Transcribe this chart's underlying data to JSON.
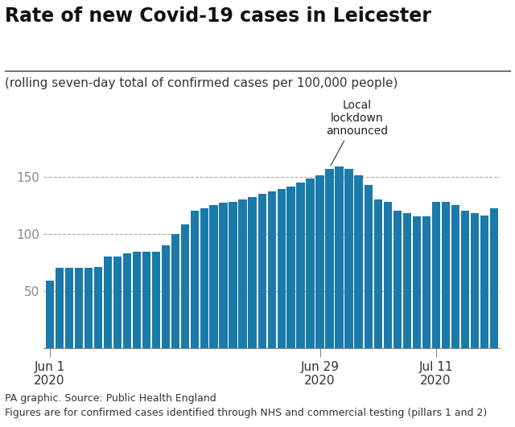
{
  "title": "Rate of new Covid-19 cases in Leicester",
  "subtitle": "(rolling seven-day total of confirmed cases per 100,000 people)",
  "annotation": "Local\nlockdown\nannounced",
  "annotation_bar_index": 29,
  "footer_line1": "PA graphic. Source: Public Health England",
  "footer_line2": "Figures are for confirmed cases identified through NHS and commercial testing (pillars 1 and 2)",
  "bar_color": "#1a7aaa",
  "background_color": "#ffffff",
  "yticks": [
    50,
    100,
    150
  ],
  "ylim": [
    0,
    185
  ],
  "xlabel_ticks": [
    {
      "label": "Jun 1\n2020",
      "bar_index": 0
    },
    {
      "label": "Jun 29\n2020",
      "bar_index": 28
    },
    {
      "label": "Jul 11\n2020",
      "bar_index": 40
    }
  ],
  "values": [
    59,
    70,
    70,
    70,
    70,
    71,
    80,
    80,
    83,
    84,
    84,
    84,
    90,
    100,
    108,
    120,
    122,
    125,
    127,
    128,
    130,
    132,
    135,
    137,
    139,
    141,
    145,
    148,
    151,
    157,
    159,
    157,
    151,
    143,
    130,
    128,
    120,
    118,
    115,
    115,
    128,
    128,
    125,
    120,
    118,
    116,
    122
  ],
  "gridline_color": "#aaaaaa",
  "gridline_style": "--",
  "title_fontsize": 17,
  "subtitle_fontsize": 11,
  "tick_fontsize": 11,
  "footer_fontsize": 9
}
